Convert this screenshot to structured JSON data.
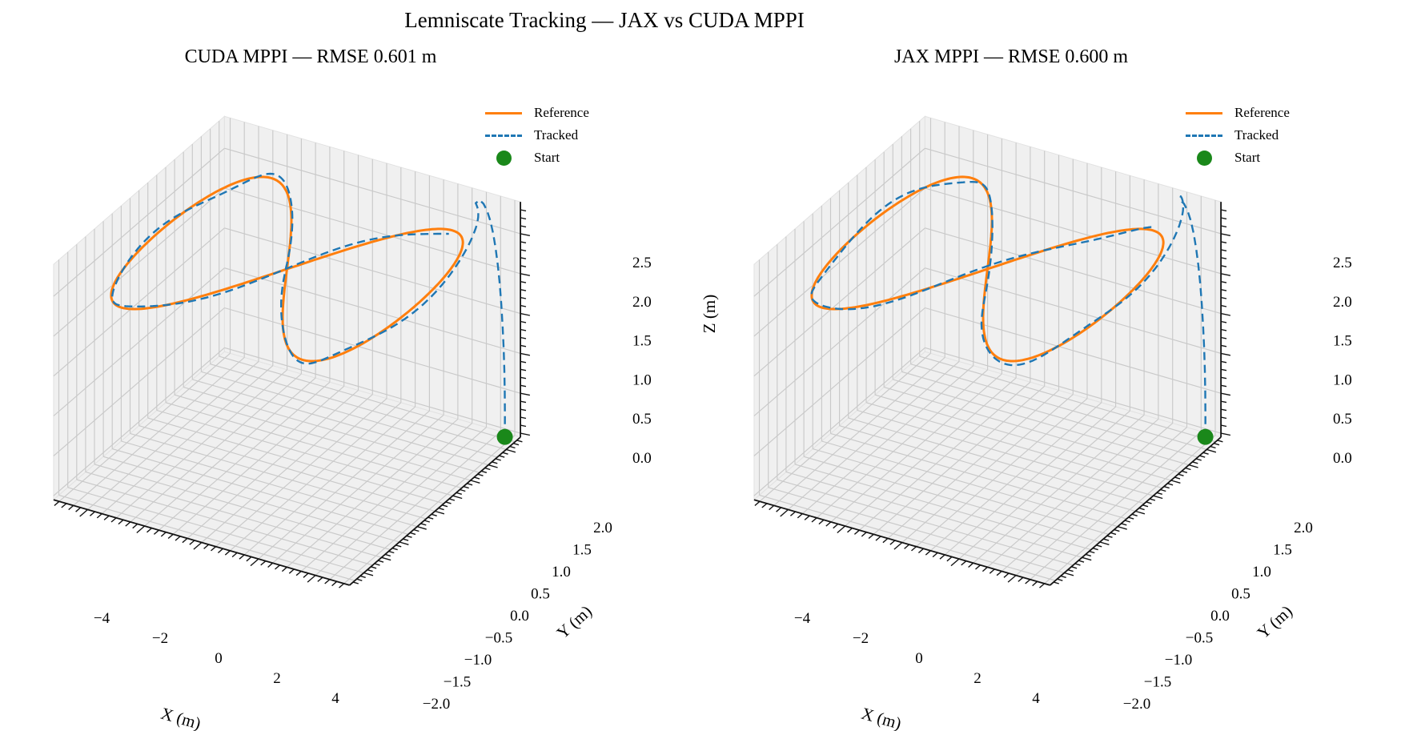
{
  "figure": {
    "title": "Lemniscate Tracking — JAX vs CUDA MPPI",
    "background": "#ffffff"
  },
  "panels": [
    {
      "id": "cuda",
      "title": "CUDA MPPI — RMSE 0.601 m",
      "rmse_m": 0.601
    },
    {
      "id": "jax",
      "title": "JAX MPPI — RMSE 0.600 m",
      "rmse_m": 0.6
    }
  ],
  "legend": {
    "items": [
      {
        "label": "Reference",
        "swatch": "solid-line",
        "color": "#ff7f0e"
      },
      {
        "label": "Tracked",
        "swatch": "dashed-line",
        "color": "#1f77b4"
      },
      {
        "label": "Start",
        "swatch": "dot",
        "color": "#1a881a"
      }
    ]
  },
  "chart_data": {
    "type": "line",
    "subtype": "3d-trajectory",
    "view": {
      "elev_deg": 30,
      "azim_deg": -60
    },
    "grid": true,
    "axes": {
      "x": {
        "label": "X (m)",
        "lim": [
          -5.2,
          5.2
        ],
        "major_ticks": [
          -4,
          -2,
          0,
          2,
          4
        ],
        "tick_labels": [
          "−4",
          "−2",
          "0",
          "2",
          "4"
        ],
        "minor_step": 0.25
      },
      "y": {
        "label": "Y (m)",
        "lim": [
          -2.4,
          2.4
        ],
        "major_ticks": [
          2.0,
          1.5,
          1.0,
          0.5,
          0.0,
          -0.5,
          -1.0,
          -1.5,
          -2.0
        ],
        "tick_labels": [
          "2.0",
          "1.5",
          "1.0",
          "0.5",
          "0.0",
          "−0.5",
          "−1.0",
          "−1.5",
          "−2.0"
        ],
        "minor_step": 0.1
      },
      "z": {
        "label": "Z (m)",
        "lim": [
          -0.05,
          2.9
        ],
        "major_ticks": [
          0.0,
          0.5,
          1.0,
          1.5,
          2.0,
          2.5
        ],
        "tick_labels": [
          "0.0",
          "0.5",
          "1.0",
          "1.5",
          "2.0",
          "2.5"
        ],
        "minor_step": 0.1
      }
    },
    "series": [
      {
        "name": "Reference",
        "style": "solid",
        "color": "#ff7f0e",
        "shape": "lemniscate",
        "x_amplitude_m": 4.5,
        "y_amplitude_m": 2.1,
        "altitude_m": 2.45
      },
      {
        "name": "Tracked",
        "style": "dashed",
        "color": "#1f77b4",
        "follows": "Reference",
        "entry_overshoot_m": {
          "x": 0.6,
          "y": 0.25,
          "z": 0.35
        },
        "wiggle_amplitude_m": 0.05
      },
      {
        "name": "Start",
        "style": "marker",
        "color": "#1a881a",
        "point": {
          "x": 4.9,
          "y": 2.2,
          "z": 0.0
        }
      }
    ]
  }
}
